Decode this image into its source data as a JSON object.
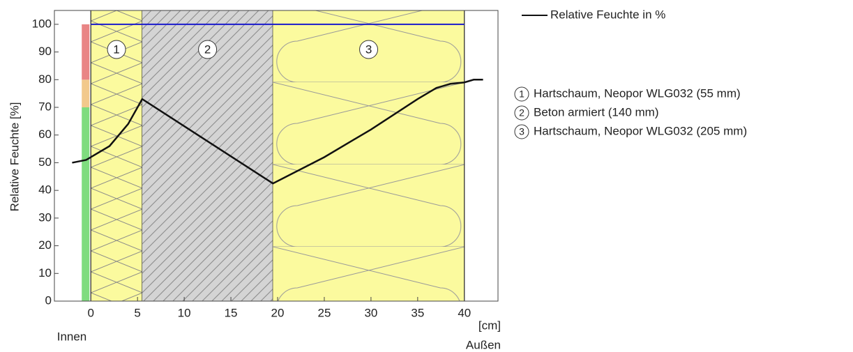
{
  "chart_data": {
    "type": "line",
    "y_label": "Relative Feuchte [%]",
    "x_unit": "[cm]",
    "inside_label": "Innen",
    "outside_label": "Außen",
    "xlim": [
      -3.9,
      43.6
    ],
    "ylim": [
      0,
      105
    ],
    "xticks": [
      0,
      5,
      10,
      15,
      20,
      25,
      30,
      35,
      40
    ],
    "yticks": [
      0,
      10,
      20,
      30,
      40,
      50,
      60,
      70,
      80,
      90,
      100
    ],
    "series": [
      {
        "name": "Relative Feuchte in %",
        "color": "#111111",
        "x": [
          -2,
          -0.5,
          0,
          2,
          4,
          5.5,
          19.5,
          25,
          30,
          35,
          37,
          38.5,
          40,
          41,
          42
        ],
        "values": [
          50,
          51,
          52,
          56,
          64,
          73,
          42.5,
          52,
          62,
          73,
          77,
          78.5,
          79,
          80,
          80
        ]
      }
    ],
    "reference": {
      "value": 100,
      "color": "#1a1acc"
    },
    "zones": [
      {
        "from": 0,
        "to": 70,
        "color": "#7fdc7f"
      },
      {
        "from": 70,
        "to": 80,
        "color": "#f2c98c"
      },
      {
        "from": 80,
        "to": 100,
        "color": "#e98585"
      }
    ],
    "layers": [
      {
        "label": "1",
        "name": "Hartschaum, Neopor WLG032 (55 mm)",
        "start": 0,
        "end": 5.5,
        "color": "#fbfa9e"
      },
      {
        "label": "2",
        "name": "Beton armiert (140 mm)",
        "start": 5.5,
        "end": 19.5,
        "color": "#d4d4d4"
      },
      {
        "label": "3",
        "name": "Hartschaum, Neopor WLG032 (205 mm)",
        "start": 19.5,
        "end": 40,
        "color": "#fbfa9e"
      }
    ]
  }
}
